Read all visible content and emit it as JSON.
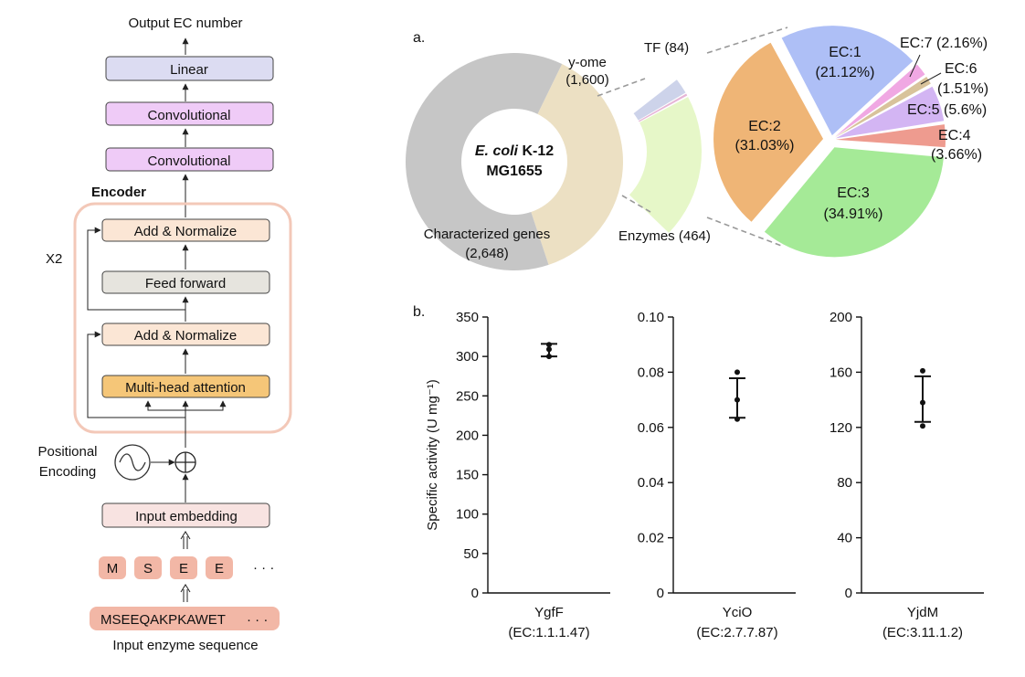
{
  "colors": {
    "linear": "#dcdcf2",
    "conv": "#efcbf7",
    "addnorm": "#fbe6d5",
    "ff": "#e6e4de",
    "mha": "#f5c678",
    "embed": "#f8e3e1",
    "token": "#f2b7a6",
    "encoder_frame": "#f3c8b8",
    "characterized": "#c6c6c6",
    "y_ome": "#ece0c3",
    "tf": "#cdd3ea",
    "enzymes": "#e6f7c8",
    "ec1": "#aebff6",
    "ec2": "#efb576",
    "ec3": "#a5ea97",
    "ec4": "#ee9b8f",
    "ec5": "#d3b5f3",
    "ec6": "#d8c39b",
    "ec7": "#f0a8e3"
  },
  "architecture": {
    "output_label": "Output EC number",
    "linear": "Linear",
    "conv1": "Convolutional",
    "conv2": "Convolutional",
    "encoder_label": "Encoder",
    "repeat_label": "X2",
    "add_norm_top": "Add & Normalize",
    "feed_forward": "Feed forward",
    "add_norm_bottom": "Add & Normalize",
    "mha": "Multi-head attention",
    "positional_line1": "Positional",
    "positional_line2": "Encoding",
    "input_embedding": "Input embedding",
    "tokens": [
      "M",
      "S",
      "E",
      "E"
    ],
    "token_ellipsis": "· · ·",
    "sequence": "MSEEQAKPKAWET",
    "sequence_ellipsis": "· · ·",
    "sequence_label": "Input enzyme sequence"
  },
  "panel_a": {
    "letter": "a.",
    "center_line1_italic": "E. coli",
    "center_line1_rest": " K-12",
    "center_line2": "MG1655",
    "yome_name": "y-ome",
    "yome_count": "(1,600)",
    "char_name": "Characterized genes",
    "char_count": "(2,648)",
    "tf_label": "TF (84)",
    "enzymes_label": "Enzymes (464)"
  },
  "panel_b": {
    "letter": "b.",
    "ylabel": "Specific activity (U mg⁻¹)"
  },
  "chart_data": [
    {
      "type": "pie",
      "title": "E. coli K-12 MG1655",
      "labels": [
        "Characterized genes",
        "y-ome"
      ],
      "values": [
        2648,
        1600
      ]
    },
    {
      "type": "bar",
      "categories": [
        "TF",
        "Enzymes"
      ],
      "values": [
        84,
        464
      ]
    },
    {
      "type": "pie",
      "labels": [
        "EC:1",
        "EC:2",
        "EC:3",
        "EC:4",
        "EC:5",
        "EC:6",
        "EC:7"
      ],
      "values": [
        21.12,
        31.03,
        34.91,
        3.66,
        5.6,
        1.51,
        2.16
      ],
      "display": [
        "EC:1|(21.12%)",
        "EC:2|(31.03%)",
        "EC:3|(34.91%)",
        "EC:4|(3.66%)",
        "EC:5 (5.6%)",
        "EC:6|(1.51%)",
        "EC:7 (2.16%)"
      ]
    },
    {
      "type": "scatter",
      "xlabel": "YgfF",
      "xlabel2": "(EC:1.1.1.47)",
      "ylabel": "Specific activity (U mg⁻¹)",
      "ylim": [
        0,
        350
      ],
      "yticks": [
        "0",
        "50",
        "100",
        "150",
        "200",
        "250",
        "300",
        "350"
      ],
      "points": [
        300,
        309,
        315
      ],
      "mean": 308,
      "error": [
        300,
        316
      ]
    },
    {
      "type": "scatter",
      "xlabel": "YciO",
      "xlabel2": "(EC:2.7.7.87)",
      "ylim": [
        0,
        0.1
      ],
      "yticks": [
        "0",
        "0.02",
        "0.04",
        "0.06",
        "0.08",
        "0.10"
      ],
      "points": [
        0.063,
        0.07,
        0.08
      ],
      "mean": 0.0705,
      "error": [
        0.0635,
        0.0778
      ]
    },
    {
      "type": "scatter",
      "xlabel": "YjdM",
      "xlabel2": "(EC:3.11.1.2)",
      "ylim": [
        0,
        200
      ],
      "yticks": [
        "0",
        "40",
        "80",
        "120",
        "160",
        "200"
      ],
      "points": [
        121,
        138,
        161
      ],
      "mean": 139,
      "error": [
        124,
        157
      ]
    }
  ]
}
